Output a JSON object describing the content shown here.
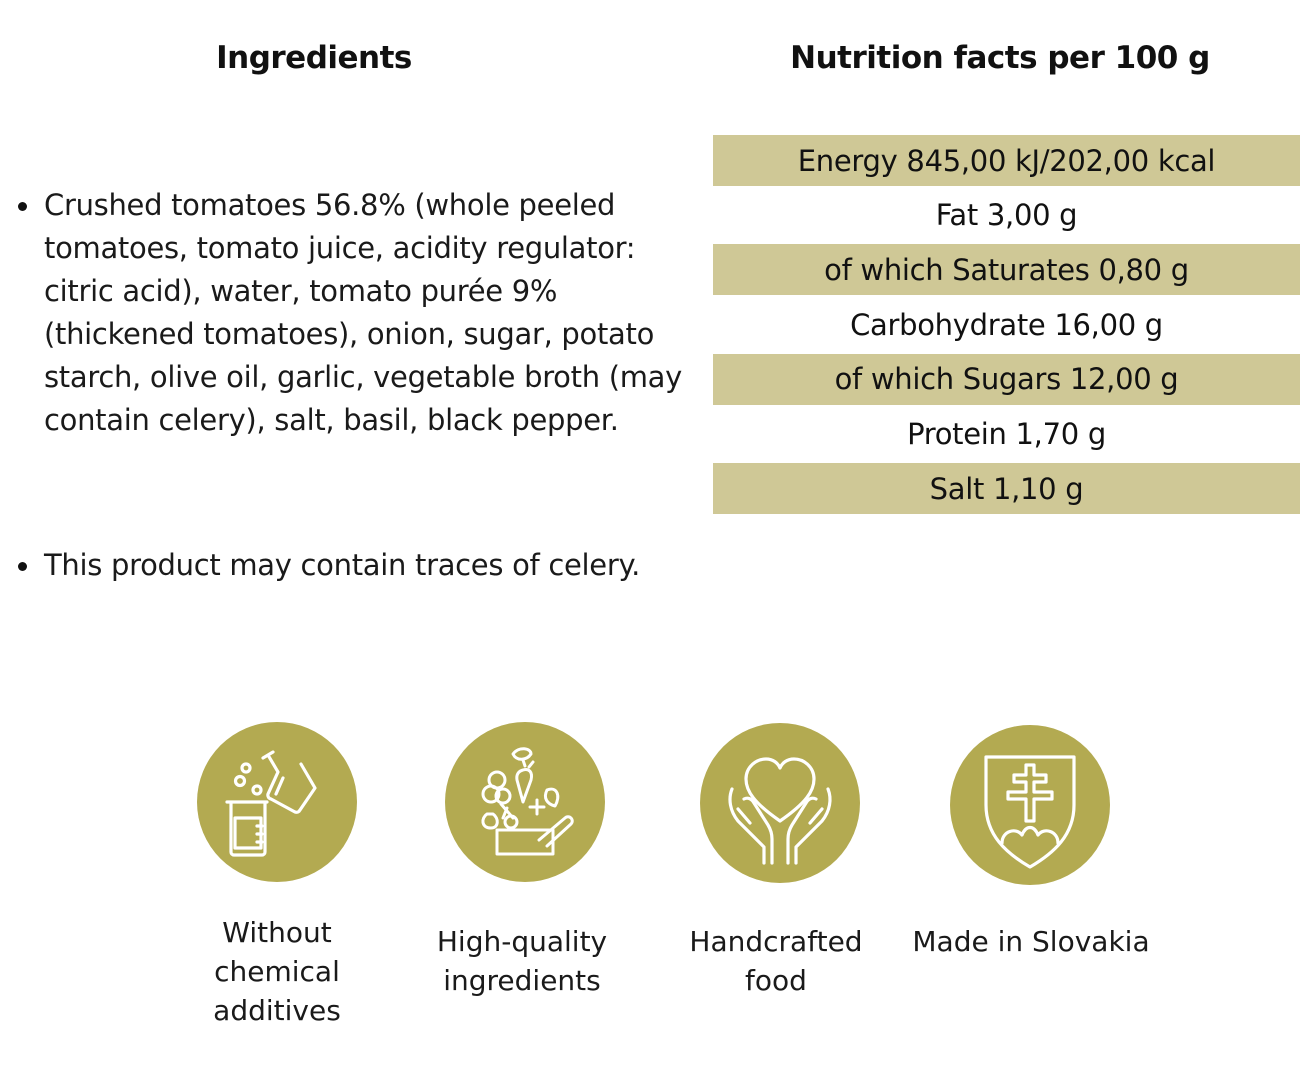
{
  "ingredients": {
    "heading": "Ingredients",
    "items": [
      "Crushed tomatoes 56.8% (whole peeled tomatoes, tomato juice, acidity regulator: citric acid), water, tomato purée 9% (thickened tomatoes), onion, sugar, potato starch, olive oil, garlic, vegetable broth (may contain celery), salt, basil, black pepper.",
      "This product may contain traces of celery."
    ]
  },
  "nutrition": {
    "heading": "Nutrition facts per 100 g",
    "rows": [
      "Energy 845,00 kJ/202,00 kcal",
      "Fat 3,00 g",
      "of which Saturates 0,80 g",
      "Carbohydrate 16,00 g",
      "of which Sugars 12,00 g",
      "Protein 1,70 g",
      "Salt 1,10 g"
    ]
  },
  "badges": [
    {
      "icon": "lab-flask-icon",
      "label": "Without\nchemical\nadditives"
    },
    {
      "icon": "vegetables-basket-icon",
      "label": "High-quality\ningredients"
    },
    {
      "icon": "heart-hands-icon",
      "label": "Handcrafted\nfood"
    },
    {
      "icon": "slovak-coat-of-arms-icon",
      "label": "Made in Slovakia"
    }
  ],
  "colors": {
    "accent": "#b3aa51",
    "table_shade": "#cfc896",
    "text": "#111111"
  }
}
